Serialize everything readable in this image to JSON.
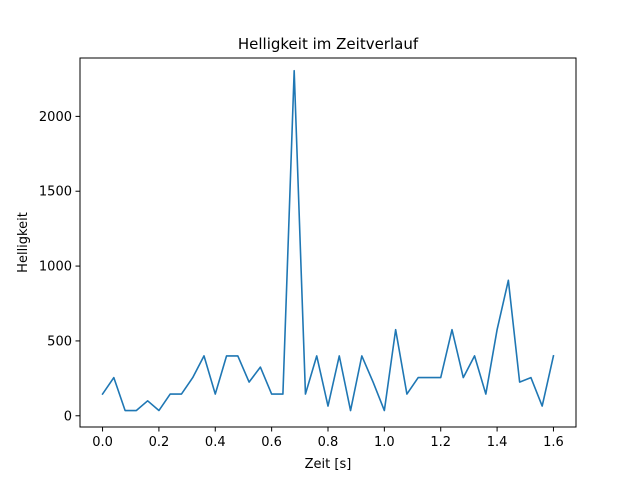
{
  "chart_data": {
    "type": "line",
    "title": "Helligkeit im Zeitverlauf",
    "xlabel": "Zeit [s]",
    "ylabel": "Helligkeit",
    "xlim": [
      -0.08,
      1.68
    ],
    "ylim": [
      -75,
      2390
    ],
    "xticks": [
      0.0,
      0.2,
      0.4,
      0.6,
      0.8,
      1.0,
      1.2,
      1.4,
      1.6
    ],
    "xtick_labels": [
      "0.0",
      "0.2",
      "0.4",
      "0.6",
      "0.8",
      "1.0",
      "1.2",
      "1.4",
      "1.6"
    ],
    "yticks": [
      0,
      500,
      1000,
      1500,
      2000
    ],
    "ytick_labels": [
      "0",
      "500",
      "1000",
      "1500",
      "2000"
    ],
    "grid": false,
    "line_color": "#1f77b4",
    "series": [
      {
        "x": [
          0.0,
          0.04,
          0.08,
          0.12,
          0.16,
          0.2,
          0.24,
          0.28,
          0.32,
          0.36,
          0.4,
          0.44,
          0.48,
          0.52,
          0.56,
          0.6,
          0.64,
          0.68,
          0.72,
          0.76,
          0.8,
          0.84,
          0.88,
          0.92,
          0.96,
          1.0,
          1.04,
          1.08,
          1.12,
          1.16,
          1.2,
          1.24,
          1.28,
          1.32,
          1.36,
          1.4,
          1.44,
          1.48,
          1.52,
          1.56,
          1.6
        ],
        "y": [
          145,
          255,
          35,
          35,
          100,
          35,
          145,
          145,
          255,
          400,
          145,
          400,
          400,
          225,
          325,
          145,
          145,
          2305,
          145,
          400,
          65,
          400,
          35,
          400,
          225,
          35,
          575,
          145,
          255,
          255,
          255,
          575,
          255,
          400,
          145,
          575,
          905,
          225,
          255,
          65,
          400
        ]
      }
    ]
  }
}
